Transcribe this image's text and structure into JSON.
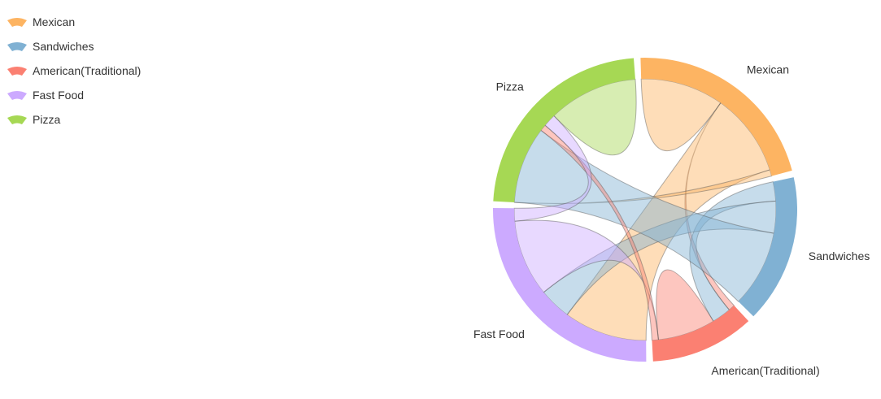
{
  "chart_data": {
    "type": "chord",
    "groups": [
      "Mexican",
      "Sandwiches",
      "American(Traditional)",
      "Fast Food",
      "Pizza"
    ],
    "colors": {
      "Mexican": "#fdb462",
      "Sandwiches": "#80b1d3",
      "American(Traditional)": "#fb8072",
      "Fast Food": "#ccaaff",
      "Pizza": "#a6d854"
    },
    "matrix": [
      [
        13,
        0,
        0,
        13,
        1
      ],
      [
        0,
        0,
        3,
        5,
        12
      ],
      [
        1,
        3,
        9,
        0,
        1
      ],
      [
        13,
        5,
        12,
        0,
        2
      ],
      [
        0,
        12,
        1,
        2,
        14
      ]
    ],
    "legend_position": "top-left"
  }
}
